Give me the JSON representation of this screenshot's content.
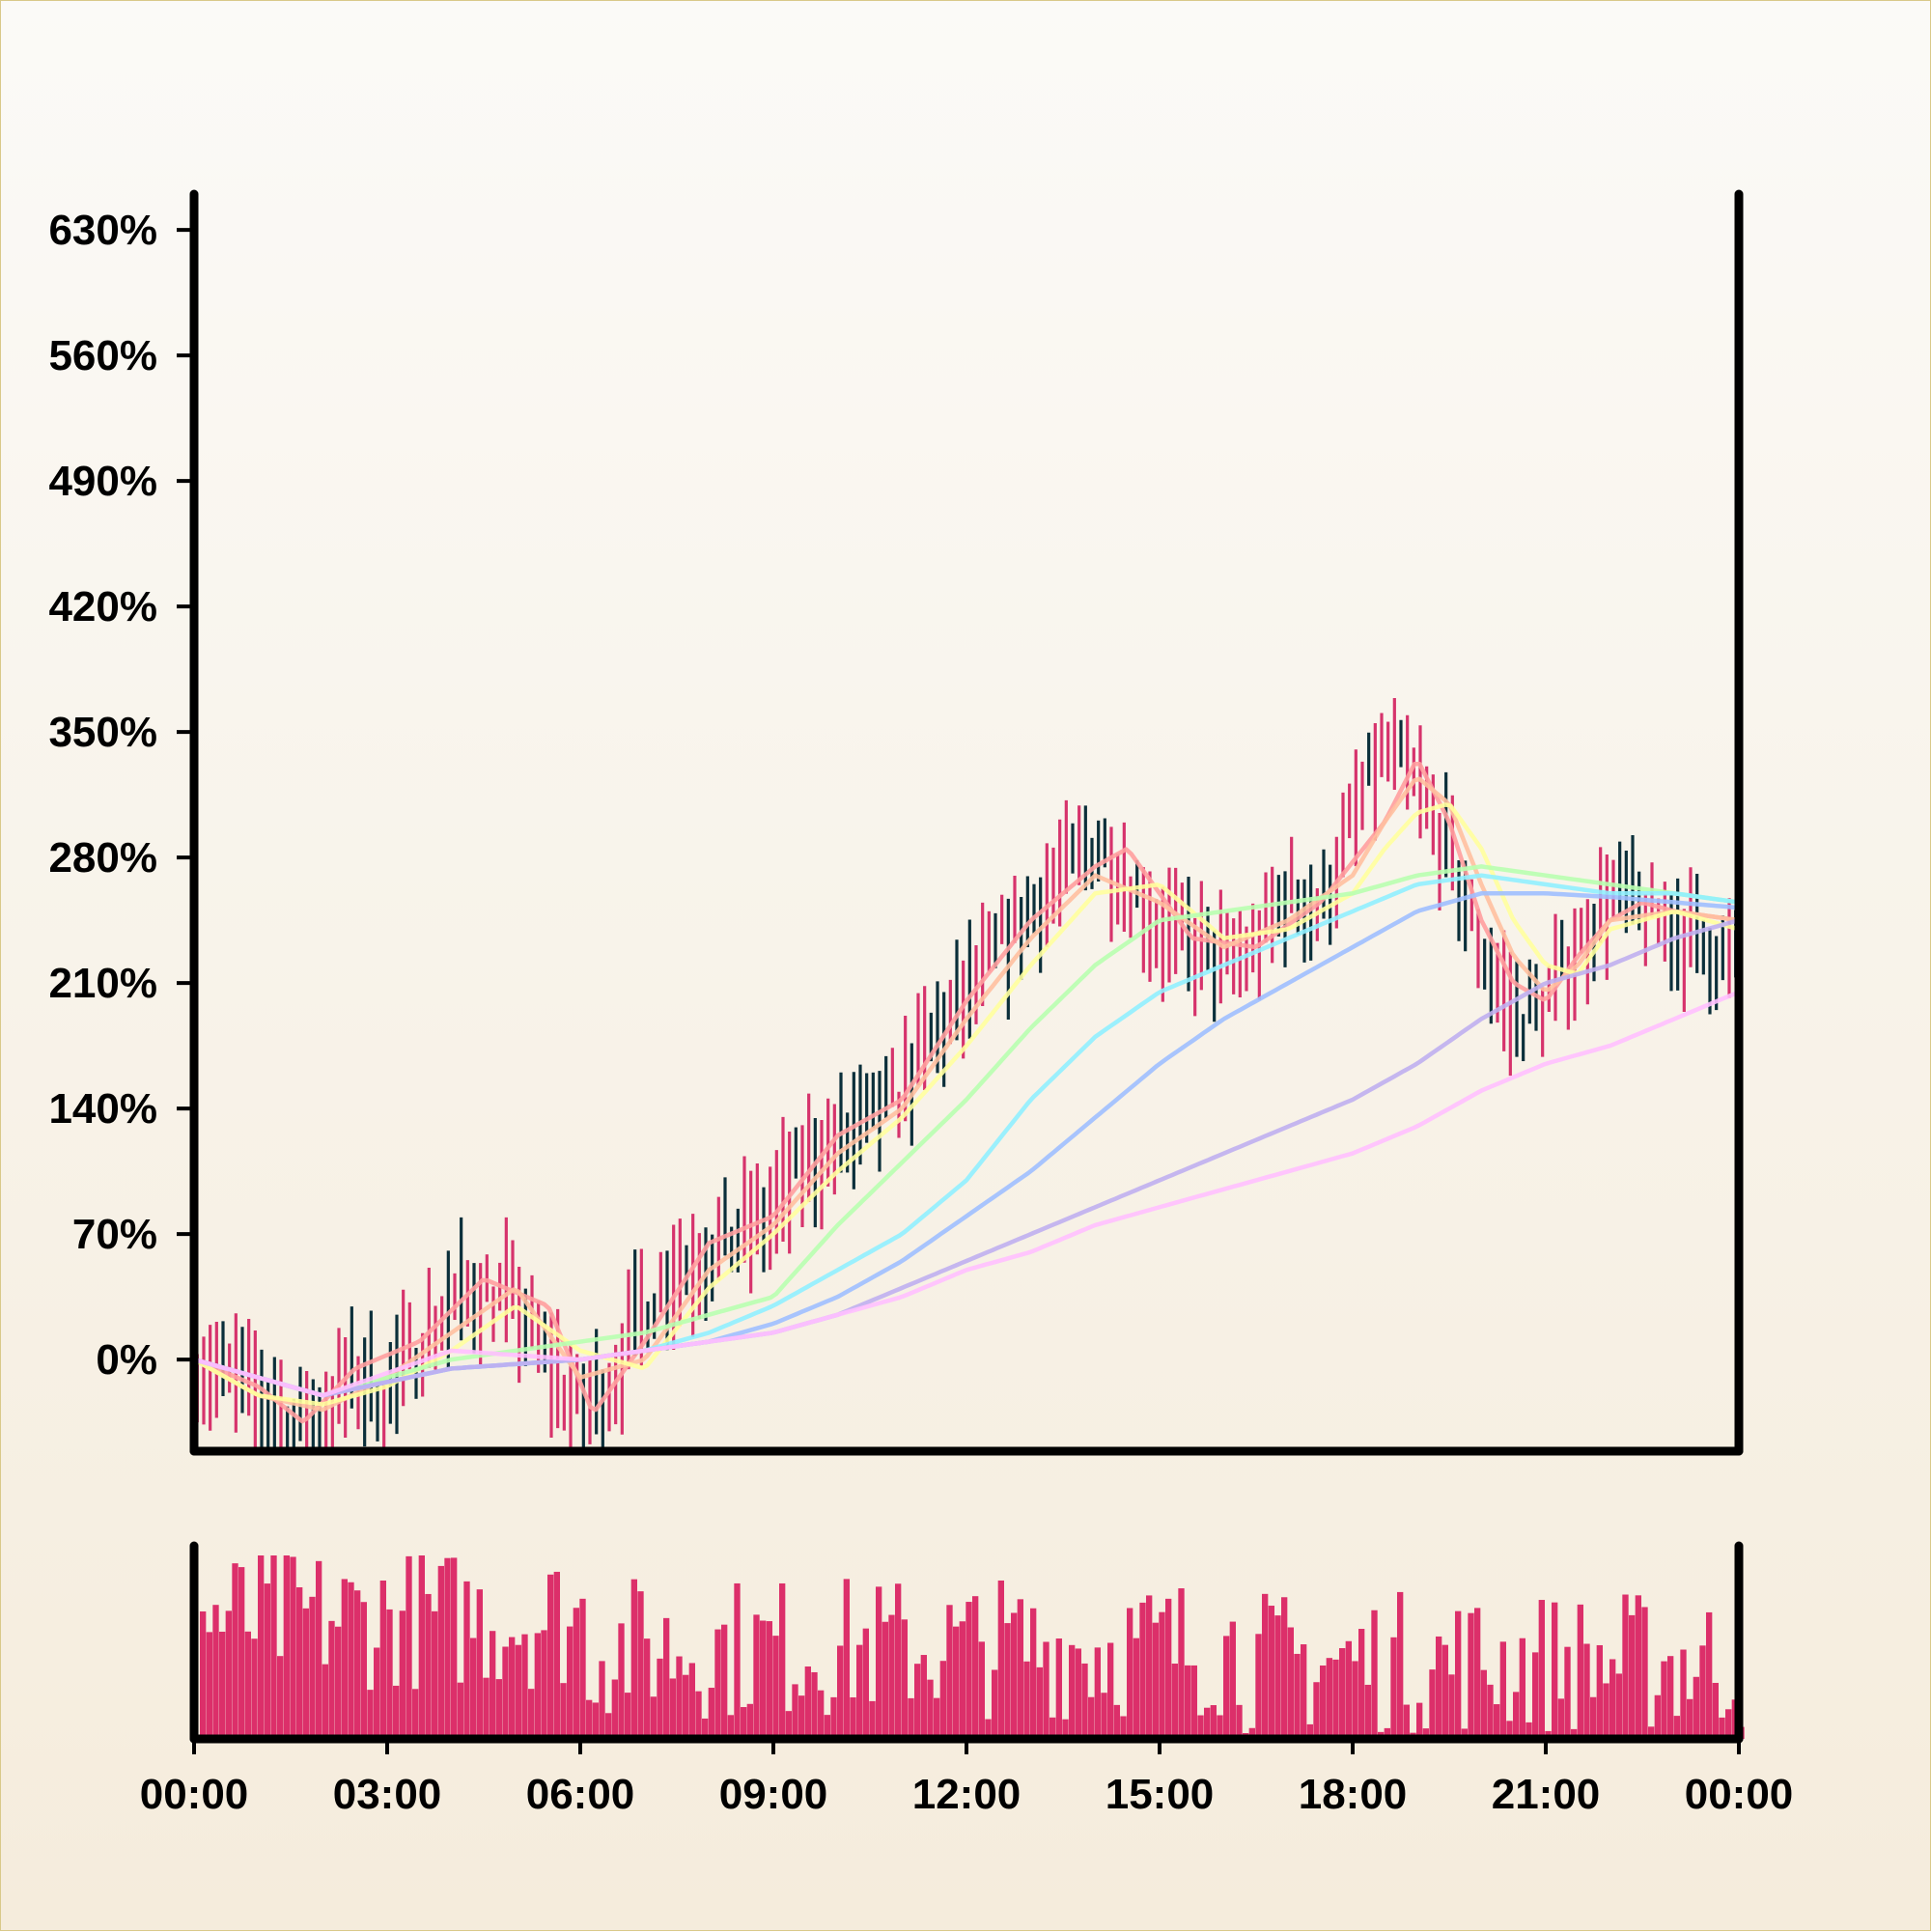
{
  "chart_data": {
    "type": "line",
    "title": "",
    "xlabel": "",
    "ylabel": "",
    "y_axis": {
      "ticks": [
        "0%",
        "70%",
        "140%",
        "210%",
        "280%",
        "350%",
        "420%",
        "490%",
        "560%",
        "630%"
      ],
      "tick_values": [
        0,
        70,
        140,
        210,
        280,
        350,
        420,
        490,
        560,
        630
      ],
      "ylim": [
        -50,
        650
      ]
    },
    "x_axis": {
      "ticks": [
        "00:00",
        "03:00",
        "06:00",
        "09:00",
        "12:00",
        "15:00",
        "18:00",
        "21:00",
        "00:00"
      ],
      "tick_hours": [
        0,
        3,
        6,
        9,
        12,
        15,
        18,
        21,
        24
      ],
      "xlim_hours": [
        0,
        24
      ]
    },
    "grid": false,
    "legend": "none",
    "candles": {
      "up_color": "#d6336c",
      "down_color": "#0b2f3a",
      "path_hours": [
        0,
        0.5,
        1,
        1.5,
        2,
        2.5,
        3,
        3.5,
        4,
        4.5,
        5,
        5.5,
        6,
        6.5,
        7,
        7.5,
        8,
        8.5,
        9,
        9.5,
        10,
        10.5,
        11,
        11.5,
        12,
        12.5,
        13,
        13.5,
        14,
        14.5,
        15,
        15.5,
        16,
        16.5,
        17,
        17.5,
        18,
        18.5,
        19,
        19.5,
        20,
        20.5,
        21,
        21.5,
        22,
        22.5,
        23,
        23.5,
        24
      ],
      "path_values": [
        0,
        -10,
        -20,
        -40,
        -30,
        -10,
        -20,
        10,
        30,
        40,
        30,
        0,
        -30,
        -10,
        30,
        50,
        60,
        70,
        80,
        110,
        120,
        130,
        150,
        180,
        200,
        230,
        250,
        270,
        290,
        270,
        240,
        230,
        220,
        230,
        260,
        250,
        300,
        340,
        320,
        280,
        230,
        190,
        200,
        230,
        260,
        250,
        240,
        230,
        220
      ]
    },
    "series": [
      {
        "color": "#ff9f9f",
        "x": [
          0,
          1,
          1.7,
          2.5,
          3.5,
          4.5,
          5.5,
          6.2,
          7,
          8,
          9,
          10,
          11,
          12,
          13,
          14,
          14.5,
          15.5,
          16.5,
          17.5,
          18.5,
          19,
          19.5,
          20,
          20.5,
          21,
          21.5,
          22,
          22.5,
          23,
          24
        ],
        "y": [
          0,
          -15,
          -35,
          -5,
          10,
          45,
          30,
          -30,
          10,
          65,
          80,
          125,
          145,
          200,
          245,
          275,
          285,
          235,
          230,
          255,
          300,
          335,
          300,
          245,
          210,
          200,
          225,
          245,
          255,
          250,
          245
        ]
      },
      {
        "color": "#ffc0a0",
        "x": [
          0,
          1,
          2,
          3,
          4,
          5,
          6,
          7,
          8,
          9,
          10,
          11,
          12,
          13,
          14,
          15,
          16,
          17,
          18,
          18.5,
          19,
          19.5,
          20,
          20.5,
          21,
          21.5,
          22,
          23,
          24
        ],
        "y": [
          0,
          -20,
          -28,
          -10,
          15,
          40,
          -10,
          0,
          50,
          75,
          115,
          140,
          190,
          235,
          270,
          255,
          230,
          245,
          270,
          300,
          325,
          310,
          265,
          225,
          205,
          220,
          245,
          250,
          245
        ]
      },
      {
        "color": "#ffff9f",
        "x": [
          0,
          1,
          2,
          3,
          4,
          5,
          6,
          7,
          8,
          9,
          10,
          11,
          12,
          13,
          14,
          15,
          16,
          17,
          18,
          18.5,
          19,
          19.5,
          20,
          20.5,
          21,
          21.5,
          22,
          23,
          24
        ],
        "y": [
          0,
          -20,
          -25,
          -15,
          5,
          30,
          5,
          -5,
          40,
          70,
          105,
          135,
          175,
          220,
          260,
          265,
          235,
          240,
          260,
          285,
          305,
          310,
          285,
          245,
          220,
          215,
          240,
          250,
          240
        ]
      },
      {
        "color": "#b8ffb0",
        "x": [
          0,
          2,
          4,
          6,
          7,
          8,
          9,
          10,
          11,
          12,
          13,
          14,
          15,
          16,
          17,
          18,
          19,
          20,
          21,
          22,
          23,
          24
        ],
        "y": [
          0,
          -20,
          0,
          10,
          15,
          25,
          35,
          75,
          110,
          145,
          185,
          220,
          245,
          250,
          255,
          260,
          270,
          275,
          270,
          265,
          260,
          255
        ]
      },
      {
        "color": "#90f0ff",
        "x": [
          0,
          2,
          4,
          6,
          7,
          8,
          9,
          10,
          11,
          12,
          13,
          14,
          15,
          16,
          17,
          18,
          19,
          20,
          21,
          22,
          23,
          24
        ],
        "y": [
          0,
          -20,
          -5,
          0,
          5,
          15,
          30,
          50,
          70,
          100,
          145,
          180,
          205,
          220,
          235,
          250,
          265,
          270,
          265,
          260,
          260,
          255
        ]
      },
      {
        "color": "#9fbfff",
        "x": [
          0,
          2,
          4,
          6,
          7,
          8,
          9,
          10,
          11,
          12,
          13,
          14,
          15,
          16,
          17,
          18,
          19,
          20,
          21,
          22,
          23,
          24
        ],
        "y": [
          0,
          -20,
          -5,
          0,
          5,
          10,
          20,
          35,
          55,
          80,
          105,
          135,
          165,
          190,
          210,
          230,
          250,
          260,
          260,
          258,
          255,
          252
        ]
      },
      {
        "color": "#bfaff0",
        "x": [
          0,
          2,
          4,
          6,
          7,
          8,
          9,
          10,
          11,
          12,
          13,
          14,
          15,
          16,
          17,
          18,
          19,
          20,
          21,
          22,
          23,
          24
        ],
        "y": [
          0,
          -20,
          -5,
          0,
          5,
          10,
          15,
          25,
          40,
          55,
          70,
          85,
          100,
          115,
          130,
          145,
          165,
          190,
          210,
          220,
          235,
          245
        ]
      },
      {
        "color": "#ffc0ff",
        "x": [
          0,
          2,
          4,
          6,
          7,
          8,
          9,
          10,
          11,
          12,
          13,
          14,
          15,
          16,
          17,
          18,
          19,
          20,
          21,
          22,
          23,
          24
        ],
        "y": [
          0,
          -20,
          5,
          0,
          5,
          10,
          15,
          25,
          35,
          50,
          60,
          75,
          85,
          95,
          105,
          115,
          130,
          150,
          165,
          175,
          190,
          205
        ]
      }
    ],
    "volume": {
      "color": "#dc2f6a",
      "bars_per_hour": 10
    }
  }
}
